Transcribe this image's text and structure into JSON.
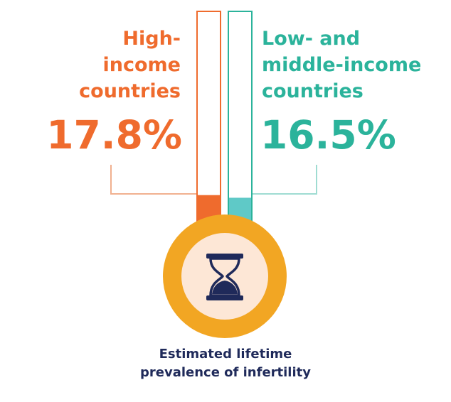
{
  "chart_data": {
    "type": "bar",
    "title": "Estimated lifetime prevalence of infertility",
    "title_lines": [
      "Estimated lifetime",
      "prevalence of infertility"
    ],
    "unit": "%",
    "series": [
      {
        "name": "High-income countries",
        "name_lines": [
          "High-",
          "income",
          "countries"
        ],
        "value": 17.8,
        "value_label": "17.8%",
        "color": "#ef6b2d"
      },
      {
        "name": "Low- and middle-income countries",
        "name_lines": [
          "Low- and",
          "middle-income",
          "countries"
        ],
        "value": 16.5,
        "value_label": "16.5%",
        "color": "#2bb39b"
      }
    ],
    "fill_color_left": "#ef6b2d",
    "fill_color_right": "#5fc9c7",
    "ring_color": "#f2a623",
    "ring_inner_color": "#fde7d6",
    "icon": "hourglass-icon",
    "icon_color": "#1f2a5a"
  }
}
